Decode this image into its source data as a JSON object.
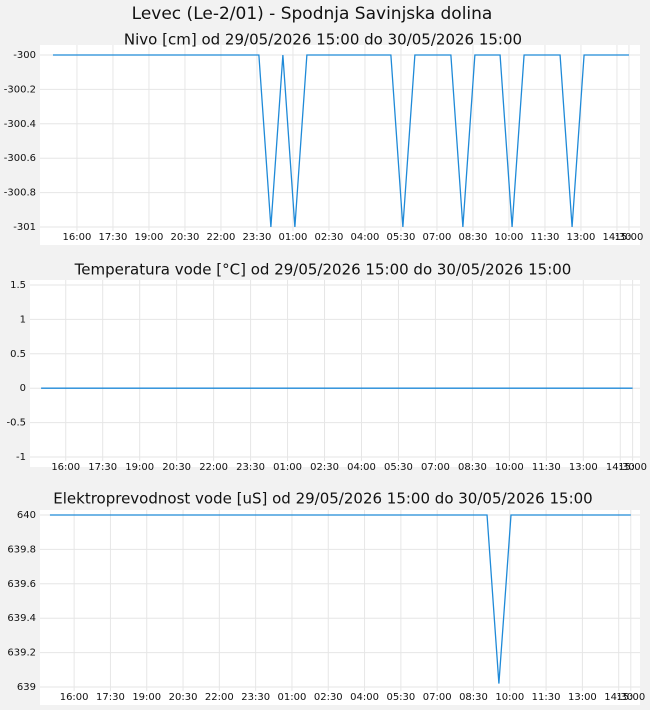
{
  "title": "Levec (Le-2/01) - Spodnja Savinjska dolina",
  "chart_data": [
    {
      "type": "line",
      "title": "Nivo [cm] od 29/05/2026 15:00 do 30/05/2026 15:00",
      "series": [
        {
          "color": "#1f8ad8",
          "x": [
            0,
            8.58,
            9.08,
            9.58,
            10.08,
            10.58,
            14.08,
            14.58,
            15.08,
            16.58,
            17.08,
            17.58,
            18.63,
            19.13,
            19.63,
            21.13,
            21.63,
            22.13,
            24
          ],
          "values": [
            -300,
            -300,
            -301,
            -300,
            -301,
            -300,
            -300,
            -301,
            -300,
            -300,
            -301,
            -300,
            -300,
            -301,
            -300,
            -300,
            -301,
            -300,
            -300
          ]
        }
      ],
      "xlim": [
        -0.54,
        24.46
      ],
      "xticks": [
        {
          "value": 1,
          "label": "16:00"
        },
        {
          "value": 2.5,
          "label": "17:30"
        },
        {
          "value": 4,
          "label": "19:00"
        },
        {
          "value": 5.5,
          "label": "20:30"
        },
        {
          "value": 7,
          "label": "22:00"
        },
        {
          "value": 8.5,
          "label": "23:30"
        },
        {
          "value": 10,
          "label": "01:00"
        },
        {
          "value": 11.5,
          "label": "02:30"
        },
        {
          "value": 13,
          "label": "04:00"
        },
        {
          "value": 14.5,
          "label": "05:30"
        },
        {
          "value": 16,
          "label": "07:00"
        },
        {
          "value": 17.5,
          "label": "08:30"
        },
        {
          "value": 19,
          "label": "10:00"
        },
        {
          "value": 20.5,
          "label": "11:30"
        },
        {
          "value": 22,
          "label": "13:00"
        },
        {
          "value": 23.5,
          "label": "14:30"
        },
        {
          "value": 24,
          "label": "15:00"
        }
      ],
      "ylim": [
        -301,
        -300
      ],
      "yticks": [
        -301,
        -300.8,
        -300.6,
        -300.4,
        -300.2,
        -300
      ],
      "grid": true
    },
    {
      "type": "line",
      "title": "Temperatura vode [°C] od 29/05/2026 15:00 do 30/05/2026 15:00",
      "series": [
        {
          "color": "#1f8ad8",
          "x": [
            0,
            24
          ],
          "values": [
            0,
            0
          ]
        }
      ],
      "xlim": [
        -0.45,
        24.3
      ],
      "xticks": [
        {
          "value": 1,
          "label": "16:00"
        },
        {
          "value": 2.5,
          "label": "17:30"
        },
        {
          "value": 4,
          "label": "19:00"
        },
        {
          "value": 5.5,
          "label": "20:30"
        },
        {
          "value": 7,
          "label": "22:00"
        },
        {
          "value": 8.5,
          "label": "23:30"
        },
        {
          "value": 10,
          "label": "01:00"
        },
        {
          "value": 11.5,
          "label": "02:30"
        },
        {
          "value": 13,
          "label": "04:00"
        },
        {
          "value": 14.5,
          "label": "05:30"
        },
        {
          "value": 16,
          "label": "07:00"
        },
        {
          "value": 17.5,
          "label": "08:30"
        },
        {
          "value": 19,
          "label": "10:00"
        },
        {
          "value": 20.5,
          "label": "11:30"
        },
        {
          "value": 22,
          "label": "13:00"
        },
        {
          "value": 23.5,
          "label": "14:30"
        },
        {
          "value": 24,
          "label": "15:00"
        }
      ],
      "ylim": [
        -1,
        1.5
      ],
      "yticks": [
        -1,
        -0.5,
        0,
        0.5,
        1,
        1.5
      ],
      "grid": true
    },
    {
      "type": "line",
      "title": "Elektroprevodnost vode [uS] od 29/05/2026 15:00 do 30/05/2026 15:00",
      "series": [
        {
          "color": "#1f8ad8",
          "x": [
            0,
            18.06,
            18.55,
            19.05,
            24
          ],
          "values": [
            640,
            640,
            639.02,
            640,
            640
          ]
        }
      ],
      "xlim": [
        -0.41,
        24.38
      ],
      "xticks": [
        {
          "value": 1,
          "label": "16:00"
        },
        {
          "value": 2.5,
          "label": "17:30"
        },
        {
          "value": 4,
          "label": "19:00"
        },
        {
          "value": 5.5,
          "label": "20:30"
        },
        {
          "value": 7,
          "label": "22:00"
        },
        {
          "value": 8.5,
          "label": "23:30"
        },
        {
          "value": 10,
          "label": "01:00"
        },
        {
          "value": 11.5,
          "label": "02:30"
        },
        {
          "value": 13,
          "label": "04:00"
        },
        {
          "value": 14.5,
          "label": "05:30"
        },
        {
          "value": 16,
          "label": "07:00"
        },
        {
          "value": 17.5,
          "label": "08:30"
        },
        {
          "value": 19,
          "label": "10:00"
        },
        {
          "value": 20.5,
          "label": "11:30"
        },
        {
          "value": 22,
          "label": "13:00"
        },
        {
          "value": 23.5,
          "label": "14:30"
        },
        {
          "value": 24,
          "label": "15:00"
        }
      ],
      "ylim": [
        639,
        640
      ],
      "yticks": [
        639,
        639.2,
        639.4,
        639.6,
        639.8,
        640
      ],
      "grid": true
    }
  ]
}
